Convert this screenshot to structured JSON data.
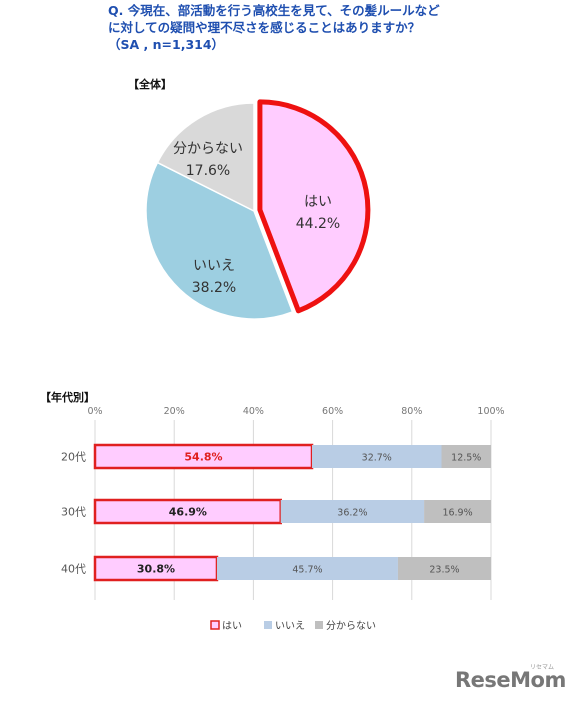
{
  "question": {
    "line1": "Q. 今現在、部活動を行う高校生を見て、その髪ルールなど",
    "line2": "に対しての疑問や理不尽さを感じることはありますか？",
    "line3": "（SA , n=1,314）"
  },
  "chart_data": [
    {
      "type": "pie",
      "title": "【全体】",
      "slices": [
        {
          "label": "はい",
          "value": 44.2,
          "value_label": "44.2%",
          "color": "#ffccff",
          "highlight": true
        },
        {
          "label": "いいえ",
          "value": 38.2,
          "value_label": "38.2%",
          "color": "#9dcfe1"
        },
        {
          "label": "分からない",
          "value": 17.6,
          "value_label": "17.6%",
          "color": "#d9d9d9"
        }
      ],
      "highlight_color": "#ee1111"
    },
    {
      "type": "bar",
      "orientation": "horizontal",
      "stacked": true,
      "title": "【年代別】",
      "categories": [
        "20代",
        "30代",
        "40代"
      ],
      "xlim": [
        0,
        100
      ],
      "x_ticks": [
        "0%",
        "20%",
        "40%",
        "60%",
        "80%",
        "100%"
      ],
      "x_tick_values": [
        0,
        20,
        40,
        60,
        80,
        100
      ],
      "series": [
        {
          "name": "はい",
          "values": [
            54.8,
            46.9,
            30.8
          ],
          "value_labels": [
            "54.8%",
            "46.9%",
            "30.8%"
          ],
          "color": "#ffccff",
          "outline": "#e02020"
        },
        {
          "name": "いいえ",
          "values": [
            32.7,
            36.2,
            45.7
          ],
          "value_labels": [
            "32.7%",
            "36.2%",
            "45.7%"
          ],
          "color": "#b9cde5"
        },
        {
          "name": "分からない",
          "values": [
            12.5,
            16.9,
            23.5
          ],
          "value_labels": [
            "12.5%",
            "16.9%",
            "23.5%"
          ],
          "color": "#bfbfbf"
        }
      ],
      "legend": "bottom"
    }
  ],
  "watermark": {
    "logo_text": "ReseMom",
    "logo_kana": "リセマム"
  }
}
